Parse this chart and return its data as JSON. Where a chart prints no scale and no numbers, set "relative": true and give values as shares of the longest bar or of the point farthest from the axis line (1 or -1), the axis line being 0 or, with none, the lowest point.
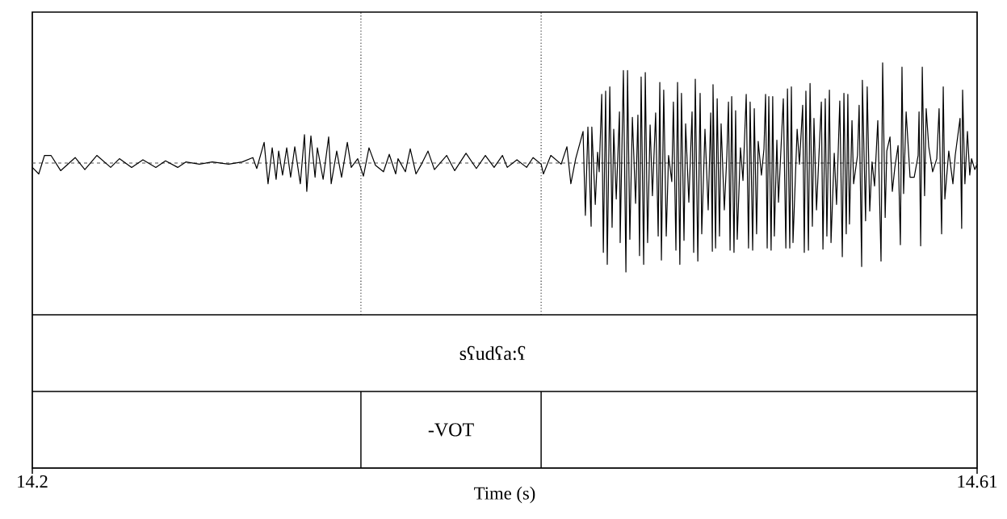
{
  "chart_data": {
    "type": "line",
    "relative": true,
    "xlabel": "Time (s)",
    "xlim": [
      14.2,
      14.61
    ],
    "xticks": [
      14.2,
      14.61
    ],
    "marker": "none",
    "line_style": "solid",
    "annotations": [
      "sʕudʕa:ʕ",
      "-VOT"
    ],
    "ref_lines": [
      {
        "axis": "y",
        "value": 0,
        "line_style": "dashed"
      },
      {
        "axis": "x",
        "value": 14.3426,
        "line_style": "dotted"
      },
      {
        "axis": "x",
        "value": 14.4208,
        "line_style": "dotted"
      }
    ],
    "x": [
      14.2,
      14.2028,
      14.2053,
      14.2081,
      14.2123,
      14.2186,
      14.2228,
      14.228,
      14.234,
      14.2378,
      14.2431,
      14.248,
      14.2536,
      14.2578,
      14.2631,
      14.2666,
      14.2725,
      14.2781,
      14.2852,
      14.2911,
      14.2957,
      14.2974,
      14.3006,
      14.3023,
      14.3041,
      14.3058,
      14.3069,
      14.3086,
      14.3104,
      14.3121,
      14.3139,
      14.3163,
      14.3181,
      14.3191,
      14.3209,
      14.3227,
      14.3237,
      14.3262,
      14.3286,
      14.3297,
      14.3321,
      14.3342,
      14.3367,
      14.3384,
      14.3412,
      14.3437,
      14.3461,
      14.3489,
      14.3524,
      14.3549,
      14.3577,
      14.3587,
      14.3619,
      14.364,
      14.3665,
      14.3689,
      14.3717,
      14.3745,
      14.3798,
      14.3833,
      14.3882,
      14.3927,
      14.3966,
      14.4004,
      14.404,
      14.4061,
      14.4103,
      14.4145,
      14.4173,
      14.4208,
      14.4218,
      14.425,
      14.4295,
      14.432,
      14.4337,
      14.4358,
      14.439,
      14.44,
      14.4411,
      14.4425,
      14.4428,
      14.4443,
      14.4453,
      14.446,
      14.4471,
      14.4478,
      14.4488,
      14.4495,
      14.4506,
      14.4516,
      14.4523,
      14.4534,
      14.4548,
      14.4551,
      14.4565,
      14.4576,
      14.4583,
      14.4593,
      14.4604,
      14.4618,
      14.4628,
      14.4635,
      14.4642,
      14.4653,
      14.466,
      14.467,
      14.4681,
      14.4691,
      14.4705,
      14.4716,
      14.4723,
      14.473,
      14.474,
      14.4751,
      14.4761,
      14.4775,
      14.4782,
      14.4793,
      14.48,
      14.481,
      14.4817,
      14.4828,
      14.4835,
      14.4849,
      14.4863,
      14.487,
      14.4877,
      14.4888,
      14.4898,
      14.4905,
      14.4919,
      14.4933,
      14.4944,
      14.4951,
      14.4954,
      14.4965,
      14.4972,
      14.4982,
      14.4989,
      14.5003,
      14.5014,
      14.5021,
      14.5028,
      14.5035,
      14.5045,
      14.5052,
      14.5059,
      14.5073,
      14.5084,
      14.5098,
      14.5108,
      14.5115,
      14.5126,
      14.5133,
      14.5143,
      14.515,
      14.5164,
      14.5175,
      14.5182,
      14.5189,
      14.5196,
      14.5206,
      14.5213,
      14.522,
      14.5231,
      14.5238,
      14.5259,
      14.527,
      14.5277,
      14.5287,
      14.5294,
      14.5301,
      14.5319,
      14.5329,
      14.5343,
      14.535,
      14.5357,
      14.5368,
      14.5375,
      14.5385,
      14.5392,
      14.5403,
      14.5424,
      14.5431,
      14.5441,
      14.5448,
      14.5459,
      14.5466,
      14.548,
      14.549,
      14.5504,
      14.5515,
      14.5522,
      14.5532,
      14.5539,
      14.5546,
      14.5557,
      14.5564,
      14.5581,
      14.5588,
      14.5599,
      14.5602,
      14.5616,
      14.5623,
      14.5634,
      14.5644,
      14.5655,
      14.5669,
      14.5683,
      14.569,
      14.5701,
      14.5708,
      14.5722,
      14.5732,
      14.5743,
      14.5757,
      14.5767,
      14.5774,
      14.5781,
      14.5792,
      14.5809,
      14.5827,
      14.5844,
      14.5848,
      14.5855,
      14.5862,
      14.5872,
      14.5879,
      14.589,
      14.5907,
      14.5925,
      14.5935,
      14.5946,
      14.5953,
      14.596,
      14.5977,
      14.5995,
      14.6005,
      14.6026,
      14.6033,
      14.6037,
      14.6047,
      14.6058,
      14.6068,
      14.6076,
      14.609,
      14.61
    ],
    "series": [
      {
        "color": "#000000",
        "values": [
          -0.04,
          -0.1,
          0.07,
          0.07,
          -0.07,
          0.05,
          -0.06,
          0.07,
          -0.04,
          0.04,
          -0.04,
          0.03,
          -0.04,
          0.02,
          -0.04,
          0.01,
          -0.01,
          0.01,
          -0.01,
          0.01,
          0.05,
          -0.05,
          0.19,
          -0.19,
          0.14,
          -0.15,
          0.11,
          -0.11,
          0.14,
          -0.13,
          0.15,
          -0.19,
          0.26,
          -0.26,
          0.25,
          -0.13,
          0.14,
          -0.15,
          0.24,
          -0.19,
          0.11,
          -0.13,
          0.19,
          -0.04,
          0.04,
          -0.12,
          0.14,
          -0.02,
          -0.08,
          0.08,
          -0.1,
          0.04,
          -0.08,
          0.13,
          -0.1,
          -0.01,
          0.11,
          -0.06,
          0.07,
          -0.07,
          0.09,
          -0.05,
          0.07,
          -0.04,
          0.07,
          -0.04,
          0.03,
          -0.04,
          0.05,
          -0.01,
          -0.1,
          0.07,
          -0.01,
          0.15,
          -0.19,
          0.04,
          0.29,
          -0.48,
          0.33,
          -0.58,
          0.33,
          -0.38,
          0.1,
          -0.08,
          0.63,
          -0.82,
          0.66,
          -0.93,
          0.7,
          -0.59,
          0.31,
          -0.33,
          0.47,
          -0.73,
          0.85,
          -1,
          0.85,
          -0.7,
          0.42,
          -0.37,
          0.44,
          -0.85,
          0.79,
          -0.93,
          0.83,
          -0.73,
          0.35,
          -0.3,
          0.46,
          -0.67,
          0.74,
          -0.89,
          0.67,
          -0.67,
          0.07,
          -0.17,
          0.56,
          -0.8,
          0.74,
          -0.93,
          0.64,
          -0.71,
          0.36,
          -0.36,
          0.47,
          -0.82,
          0.77,
          -0.9,
          0.64,
          -0.65,
          0.31,
          -0.43,
          0.46,
          -0.81,
          0.72,
          -0.78,
          0.59,
          -0.67,
          0.36,
          -0.43,
          0.07,
          0.56,
          -0.8,
          0.61,
          -0.82,
          0.48,
          -0.7,
          0.14,
          -0.16,
          0.63,
          -0.78,
          0.56,
          -0.8,
          0.5,
          -0.65,
          0.2,
          -0.11,
          0.13,
          0.63,
          -0.78,
          0.61,
          -0.8,
          0.61,
          -0.67,
          0.21,
          -0.36,
          0.59,
          -0.78,
          0.68,
          -0.78,
          0.7,
          -0.73,
          0.31,
          -0.01,
          0.53,
          -0.82,
          0.66,
          -0.8,
          0.73,
          -0.58,
          0.41,
          -0.43,
          0.56,
          -0.79,
          0.59,
          -0.67,
          0.67,
          -0.73,
          0.09,
          -0.38,
          0.57,
          -0.86,
          0.64,
          -0.65,
          0.63,
          -0.56,
          0.39,
          -0.19,
          0.07,
          0.53,
          -0.95,
          0.76,
          -0.53,
          0.7,
          -0.44,
          0.01,
          -0.21,
          0.39,
          -0.9,
          0.92,
          -0.5,
          0.11,
          0.24,
          -0.26,
          -0.04,
          0.16,
          -0.75,
          0.88,
          -0.28,
          0.47,
          -0.13,
          -0.13,
          0.07,
          0.47,
          -0.76,
          0.88,
          -0.3,
          0.5,
          0.15,
          -0.08,
          0.04,
          0.5,
          -0.65,
          0.7,
          -0.33,
          0.11,
          -0.19,
          0.07,
          0.41,
          -0.6,
          0.67,
          -0.19,
          0.29,
          -0.11,
          0.04,
          -0.06,
          -0.01
        ]
      }
    ]
  }
}
